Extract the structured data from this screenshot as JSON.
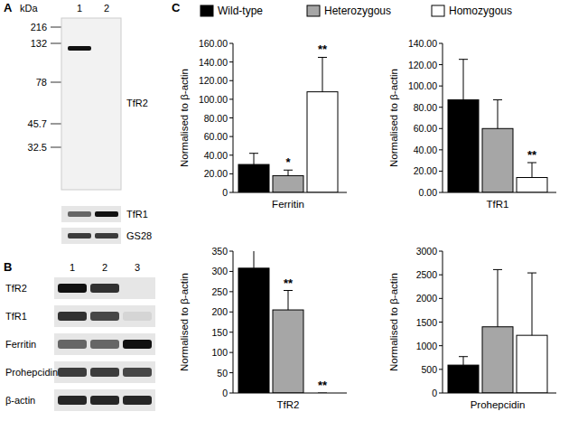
{
  "panel_a": {
    "label": "A",
    "unit": "kDa",
    "lanes": [
      "1",
      "2"
    ],
    "markers": [
      216,
      132,
      78,
      45.7,
      32.5
    ],
    "blot": {
      "name": "TfR2",
      "intensity": [
        1,
        0
      ]
    },
    "strips": [
      {
        "name": "TfR1",
        "intensity": [
          0.6,
          1
        ]
      },
      {
        "name": "GS28",
        "intensity": [
          0.8,
          0.8
        ]
      }
    ]
  },
  "panel_b": {
    "label": "B",
    "lanes": [
      "1",
      "2",
      "3"
    ],
    "strips": [
      {
        "name": "TfR2",
        "intensity": [
          1,
          0.85,
          0
        ]
      },
      {
        "name": "TfR1",
        "intensity": [
          0.85,
          0.75,
          0.08
        ]
      },
      {
        "name": "Ferritin",
        "intensity": [
          0.6,
          0.6,
          1
        ]
      },
      {
        "name": "Prohepcidin",
        "intensity": [
          0.8,
          0.8,
          0.75
        ]
      },
      {
        "name": "β-actin",
        "intensity": [
          0.9,
          0.9,
          0.9
        ]
      }
    ]
  },
  "panel_c_label": "C",
  "chart_data": [
    {
      "type": "bar",
      "categories": [
        "Ferritin"
      ],
      "y_label": "Normalised to β-actin",
      "ylim": [
        0,
        160
      ],
      "yticks": [
        0,
        {
          "value": 20,
          "label": "20.00"
        },
        {
          "value": 40,
          "label": "40.00"
        },
        {
          "value": 60,
          "label": "60.00"
        },
        {
          "value": 80,
          "label": "80.00"
        },
        {
          "value": 100,
          "label": "100.00"
        },
        {
          "value": 120,
          "label": "120.00"
        },
        {
          "value": 140,
          "label": "140.00"
        },
        {
          "value": 160,
          "label": "160.00"
        }
      ],
      "series": [
        {
          "name": "Wild-type",
          "color": "#000000",
          "values": [
            30
          ],
          "errors": [
            12
          ],
          "stars": [
            null
          ]
        },
        {
          "name": "Heterozygous",
          "color": "#a6a6a6",
          "values": [
            18
          ],
          "errors": [
            6
          ],
          "stars": [
            "*"
          ]
        },
        {
          "name": "Homozygous",
          "color": "#ffffff",
          "values": [
            108
          ],
          "errors": [
            37
          ],
          "stars": [
            "**"
          ]
        }
      ]
    },
    {
      "type": "bar",
      "categories": [
        "TfR1"
      ],
      "y_label": "Normalised to β-actin",
      "ylim": [
        0,
        140
      ],
      "yticks": [
        {
          "value": 0,
          "label": "0.00"
        },
        {
          "value": 20,
          "label": "20.00"
        },
        {
          "value": 40,
          "label": "40.00"
        },
        {
          "value": 60,
          "label": "60.00"
        },
        {
          "value": 80,
          "label": "80.00"
        },
        {
          "value": 100,
          "label": "100.00"
        },
        {
          "value": 120,
          "label": "120.00"
        },
        {
          "value": 140,
          "label": "140.00"
        }
      ],
      "series": [
        {
          "color": "#000000",
          "values": [
            87
          ],
          "errors": [
            38
          ],
          "stars": [
            null
          ]
        },
        {
          "color": "#a6a6a6",
          "values": [
            60
          ],
          "errors": [
            27
          ],
          "stars": [
            null
          ]
        },
        {
          "color": "#ffffff",
          "values": [
            14
          ],
          "errors": [
            14
          ],
          "stars": [
            "**"
          ]
        }
      ]
    },
    {
      "type": "bar",
      "categories": [
        "TfR2"
      ],
      "y_label": "Normalised to β-actin",
      "ylim": [
        0,
        350
      ],
      "yticks": [
        0,
        50,
        100,
        150,
        200,
        250,
        300,
        350
      ],
      "series": [
        {
          "color": "#000000",
          "values": [
            308
          ],
          "errors": [
            58
          ],
          "stars": [
            null
          ]
        },
        {
          "color": "#a6a6a6",
          "values": [
            205
          ],
          "errors": [
            48
          ],
          "stars": [
            "**"
          ]
        },
        {
          "color": "#ffffff",
          "values": [
            0
          ],
          "errors": [
            0
          ],
          "stars": [
            "**"
          ]
        }
      ]
    },
    {
      "type": "bar",
      "categories": [
        "Prohepcidin"
      ],
      "y_label": "Normalised to β-actin",
      "ylim": [
        0,
        3000
      ],
      "yticks": [
        0,
        500,
        1000,
        1500,
        2000,
        2500,
        3000
      ],
      "series": [
        {
          "color": "#000000",
          "values": [
            590
          ],
          "errors": [
            180
          ],
          "stars": [
            null
          ]
        },
        {
          "color": "#a6a6a6",
          "values": [
            1400
          ],
          "errors": [
            1210
          ],
          "stars": [
            null
          ]
        },
        {
          "color": "#ffffff",
          "values": [
            1220
          ],
          "errors": [
            1320
          ],
          "stars": [
            null
          ]
        }
      ]
    }
  ]
}
